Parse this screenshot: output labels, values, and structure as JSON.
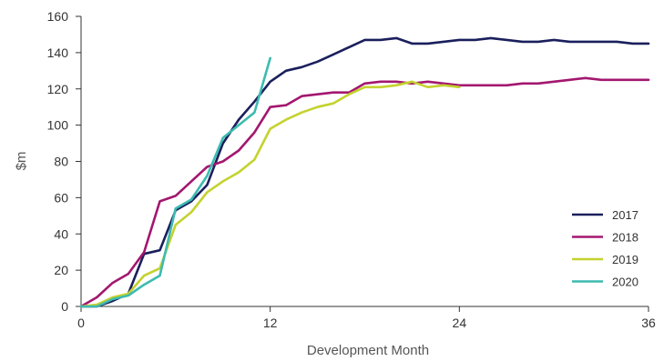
{
  "chart_data": {
    "type": "line",
    "xlabel": "Development Month",
    "ylabel": "$m",
    "xlim": [
      0,
      36
    ],
    "ylim": [
      0,
      160
    ],
    "xticks": [
      0,
      12,
      24,
      36
    ],
    "yticks": [
      0,
      20,
      40,
      60,
      80,
      100,
      120,
      140,
      160
    ],
    "grid": false,
    "legend_position": "bottom-right",
    "series": [
      {
        "name": "2017",
        "color": "#1a1f5c",
        "points": [
          [
            0,
            0
          ],
          [
            1,
            0
          ],
          [
            2,
            3
          ],
          [
            3,
            7
          ],
          [
            4,
            29
          ],
          [
            5,
            31
          ],
          [
            6,
            53
          ],
          [
            7,
            58
          ],
          [
            8,
            67
          ],
          [
            9,
            90
          ],
          [
            10,
            103
          ],
          [
            11,
            113
          ],
          [
            12,
            124
          ],
          [
            13,
            130
          ],
          [
            14,
            132
          ],
          [
            15,
            135
          ],
          [
            16,
            139
          ],
          [
            17,
            143
          ],
          [
            18,
            147
          ],
          [
            19,
            147
          ],
          [
            20,
            148
          ],
          [
            21,
            145
          ],
          [
            22,
            145
          ],
          [
            23,
            146
          ],
          [
            24,
            147
          ],
          [
            25,
            147
          ],
          [
            26,
            148
          ],
          [
            27,
            147
          ],
          [
            28,
            146
          ],
          [
            29,
            146
          ],
          [
            30,
            147
          ],
          [
            31,
            146
          ],
          [
            32,
            146
          ],
          [
            33,
            146
          ],
          [
            34,
            146
          ],
          [
            35,
            145
          ],
          [
            36,
            145
          ]
        ]
      },
      {
        "name": "2018",
        "color": "#a3176f",
        "points": [
          [
            0,
            0
          ],
          [
            1,
            5
          ],
          [
            2,
            13
          ],
          [
            3,
            18
          ],
          [
            4,
            30
          ],
          [
            5,
            58
          ],
          [
            6,
            61
          ],
          [
            7,
            69
          ],
          [
            8,
            77
          ],
          [
            9,
            80
          ],
          [
            10,
            86
          ],
          [
            11,
            96
          ],
          [
            12,
            110
          ],
          [
            13,
            111
          ],
          [
            14,
            116
          ],
          [
            15,
            117
          ],
          [
            16,
            118
          ],
          [
            17,
            118
          ],
          [
            18,
            123
          ],
          [
            19,
            124
          ],
          [
            20,
            124
          ],
          [
            21,
            123
          ],
          [
            22,
            124
          ],
          [
            23,
            123
          ],
          [
            24,
            122
          ],
          [
            25,
            122
          ],
          [
            26,
            122
          ],
          [
            27,
            122
          ],
          [
            28,
            123
          ],
          [
            29,
            123
          ],
          [
            30,
            124
          ],
          [
            31,
            125
          ],
          [
            32,
            126
          ],
          [
            33,
            125
          ],
          [
            34,
            125
          ],
          [
            35,
            125
          ],
          [
            36,
            125
          ]
        ]
      },
      {
        "name": "2019",
        "color": "#c4d22e",
        "points": [
          [
            0,
            0
          ],
          [
            1,
            1
          ],
          [
            2,
            5
          ],
          [
            3,
            7
          ],
          [
            4,
            17
          ],
          [
            5,
            21
          ],
          [
            6,
            45
          ],
          [
            7,
            52
          ],
          [
            8,
            63
          ],
          [
            9,
            69
          ],
          [
            10,
            74
          ],
          [
            11,
            81
          ],
          [
            12,
            98
          ],
          [
            13,
            103
          ],
          [
            14,
            107
          ],
          [
            15,
            110
          ],
          [
            16,
            112
          ],
          [
            17,
            117
          ],
          [
            18,
            121
          ],
          [
            19,
            121
          ],
          [
            20,
            122
          ],
          [
            21,
            124
          ],
          [
            22,
            121
          ],
          [
            23,
            122
          ],
          [
            24,
            121
          ]
        ]
      },
      {
        "name": "2020",
        "color": "#3dbbb0",
        "points": [
          [
            0,
            0
          ],
          [
            1,
            0
          ],
          [
            2,
            4
          ],
          [
            3,
            6
          ],
          [
            4,
            12
          ],
          [
            5,
            17
          ],
          [
            6,
            54
          ],
          [
            7,
            59
          ],
          [
            8,
            72
          ],
          [
            9,
            93
          ],
          [
            10,
            100
          ],
          [
            11,
            107
          ],
          [
            12,
            137
          ]
        ]
      }
    ]
  }
}
